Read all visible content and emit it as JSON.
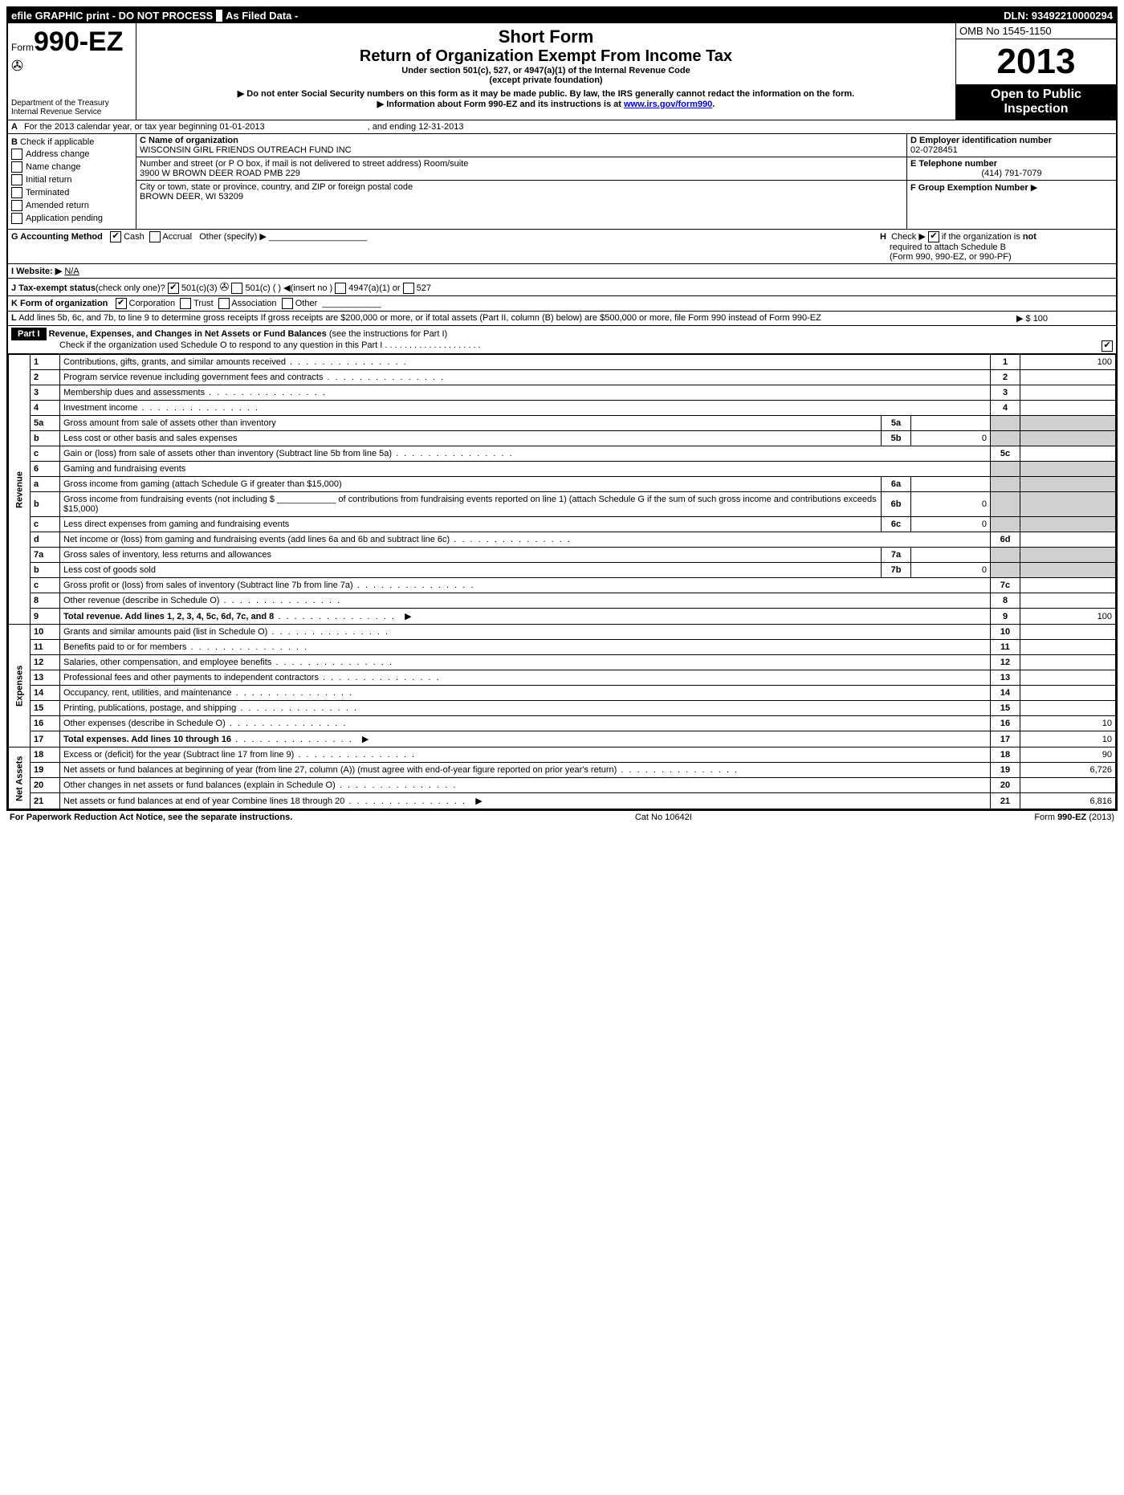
{
  "top_bar": {
    "efile": "efile GRAPHIC print - DO NOT PROCESS",
    "as_filed": "As Filed Data -",
    "dln": "DLN: 93492210000294"
  },
  "header": {
    "form_prefix": "Form",
    "form_number": "990-EZ",
    "dept1": "Department of the Treasury",
    "dept2": "Internal Revenue Service",
    "short_form": "Short Form",
    "title": "Return of Organization Exempt From Income Tax",
    "subtitle1": "Under section 501(c), 527, or 4947(a)(1) of the Internal Revenue Code",
    "subtitle2": "(except private foundation)",
    "note1": "▶ Do not enter Social Security numbers on this form as it may be made public. By law, the IRS generally cannot redact the information on the form.",
    "note2": "▶ Information about Form 990-EZ and its instructions is at ",
    "note2_link": "www.irs.gov/form990",
    "omb": "OMB No 1545-1150",
    "year": "2013",
    "open1": "Open to Public",
    "open2": "Inspection"
  },
  "row_a": {
    "label_a": "A",
    "text": "For the 2013 calendar year, or tax year beginning 01-01-2013",
    "ending": ", and ending 12-31-2013"
  },
  "col_b": {
    "label": "B",
    "intro": "Check if applicable",
    "items": [
      "Address change",
      "Name change",
      "Initial return",
      "Terminated",
      "Amended return",
      "Application pending"
    ]
  },
  "col_c": {
    "name_label": "C Name of organization",
    "name": "WISCONSIN GIRL FRIENDS OUTREACH FUND INC",
    "street_label": "Number and street (or P O box, if mail is not delivered to street address) Room/suite",
    "street": "3900 W BROWN DEER ROAD PMB 229",
    "city_label": "City or town, state or province, country, and ZIP or foreign postal code",
    "city": "BROWN DEER, WI 53209"
  },
  "col_d": {
    "ein_label": "D Employer identification number",
    "ein": "02-0728451",
    "tel_label": "E Telephone number",
    "tel": "(414) 791-7079",
    "grp_label": "F Group Exemption Number",
    "grp_arrow": "▶"
  },
  "line_g": {
    "label": "G Accounting Method",
    "cash": "Cash",
    "accrual": "Accrual",
    "other": "Other (specify) ▶"
  },
  "line_h": {
    "label": "H",
    "text1": "Check ▶",
    "text2": "if the organization is",
    "not": "not",
    "text3": "required to attach Schedule B",
    "text4": "(Form 990, 990-EZ, or 990-PF)"
  },
  "line_i": {
    "label": "I Website: ▶",
    "value": "N/A"
  },
  "line_j": {
    "label": "J Tax-exempt status",
    "paren": "(check only one)?",
    "opt1": "501(c)(3)",
    "opt2": "501(c) (   ) ◀(insert no )",
    "opt3": "4947(a)(1) or",
    "opt4": "527"
  },
  "line_k": {
    "label": "K Form of organization",
    "opts": [
      "Corporation",
      "Trust",
      "Association",
      "Other"
    ]
  },
  "line_l": {
    "label": "L",
    "text": "Add lines 5b, 6c, and 7b, to line 9 to determine gross receipts  If gross receipts are $200,000 or more, or if total assets (Part II, column (B) below) are $500,000 or more, file Form 990 instead of Form 990-EZ",
    "amount": "▶ $ 100"
  },
  "part1": {
    "header": "Part I",
    "title": "Revenue, Expenses, and Changes in Net Assets or Fund Balances",
    "title_note": "(see the instructions for Part I)",
    "check_note": "Check if the organization used Schedule O to respond to any question in this Part I . . . . . . . . . . . . . . . . . . . ."
  },
  "sections": {
    "revenue": "Revenue",
    "expenses": "Expenses",
    "net_assets": "Net Assets"
  },
  "lines": [
    {
      "section": "revenue",
      "num": "1",
      "desc": "Contributions, gifts, grants, and similar amounts received",
      "rnum": "1",
      "amt": "100"
    },
    {
      "section": "revenue",
      "num": "2",
      "desc": "Program service revenue including government fees and contracts",
      "rnum": "2",
      "amt": ""
    },
    {
      "section": "revenue",
      "num": "3",
      "desc": "Membership dues and assessments",
      "rnum": "3",
      "amt": ""
    },
    {
      "section": "revenue",
      "num": "4",
      "desc": "Investment income",
      "rnum": "4",
      "amt": ""
    },
    {
      "section": "revenue",
      "num": "5a",
      "desc": "Gross amount from sale of assets other than inventory",
      "sub_num": "5a",
      "sub_amt": ""
    },
    {
      "section": "revenue",
      "num": "b",
      "desc": "Less cost or other basis and sales expenses",
      "sub_num": "5b",
      "sub_amt": "0"
    },
    {
      "section": "revenue",
      "num": "c",
      "desc": "Gain or (loss) from sale of assets other than inventory (Subtract line 5b from line 5a)",
      "rnum": "5c",
      "amt": ""
    },
    {
      "section": "revenue",
      "num": "6",
      "desc": "Gaming and fundraising events",
      "gray_right": true
    },
    {
      "section": "revenue",
      "num": "a",
      "desc": "Gross income from gaming (attach Schedule G if greater than $15,000)",
      "sub_num": "6a",
      "sub_amt": ""
    },
    {
      "section": "revenue",
      "num": "b",
      "desc": "Gross income from fundraising events (not including $ ____________ of contributions from fundraising events reported on line 1) (attach Schedule G if the sum of such gross income and contributions exceeds $15,000)",
      "sub_num": "6b",
      "sub_amt": "0"
    },
    {
      "section": "revenue",
      "num": "c",
      "desc": "Less direct expenses from gaming and fundraising events",
      "sub_num": "6c",
      "sub_amt": "0"
    },
    {
      "section": "revenue",
      "num": "d",
      "desc": "Net income or (loss) from gaming and fundraising events (add lines 6a and 6b and subtract line 6c)",
      "rnum": "6d",
      "amt": ""
    },
    {
      "section": "revenue",
      "num": "7a",
      "desc": "Gross sales of inventory, less returns and allowances",
      "sub_num": "7a",
      "sub_amt": ""
    },
    {
      "section": "revenue",
      "num": "b",
      "desc": "Less cost of goods sold",
      "sub_num": "7b",
      "sub_amt": "0"
    },
    {
      "section": "revenue",
      "num": "c",
      "desc": "Gross profit or (loss) from sales of inventory (Subtract line 7b from line 7a)",
      "rnum": "7c",
      "amt": ""
    },
    {
      "section": "revenue",
      "num": "8",
      "desc": "Other revenue (describe in Schedule O)",
      "rnum": "8",
      "amt": ""
    },
    {
      "section": "revenue",
      "num": "9",
      "desc": "Total revenue. Add lines 1, 2, 3, 4, 5c, 6d, 7c, and 8",
      "rnum": "9",
      "amt": "100",
      "bold": true,
      "arrow": true
    },
    {
      "section": "expenses",
      "num": "10",
      "desc": "Grants and similar amounts paid (list in Schedule O)",
      "rnum": "10",
      "amt": ""
    },
    {
      "section": "expenses",
      "num": "11",
      "desc": "Benefits paid to or for members",
      "rnum": "11",
      "amt": ""
    },
    {
      "section": "expenses",
      "num": "12",
      "desc": "Salaries, other compensation, and employee benefits",
      "rnum": "12",
      "amt": ""
    },
    {
      "section": "expenses",
      "num": "13",
      "desc": "Professional fees and other payments to independent contractors",
      "rnum": "13",
      "amt": ""
    },
    {
      "section": "expenses",
      "num": "14",
      "desc": "Occupancy, rent, utilities, and maintenance",
      "rnum": "14",
      "amt": ""
    },
    {
      "section": "expenses",
      "num": "15",
      "desc": "Printing, publications, postage, and shipping",
      "rnum": "15",
      "amt": ""
    },
    {
      "section": "expenses",
      "num": "16",
      "desc": "Other expenses (describe in Schedule O)",
      "rnum": "16",
      "amt": "10"
    },
    {
      "section": "expenses",
      "num": "17",
      "desc": "Total expenses. Add lines 10 through 16",
      "rnum": "17",
      "amt": "10",
      "bold": true,
      "arrow": true
    },
    {
      "section": "net_assets",
      "num": "18",
      "desc": "Excess or (deficit) for the year (Subtract line 17 from line 9)",
      "rnum": "18",
      "amt": "90"
    },
    {
      "section": "net_assets",
      "num": "19",
      "desc": "Net assets or fund balances at beginning of year (from line 27, column (A)) (must agree with end-of-year figure reported on prior year's return)",
      "rnum": "19",
      "amt": "6,726"
    },
    {
      "section": "net_assets",
      "num": "20",
      "desc": "Other changes in net assets or fund balances (explain in Schedule O)",
      "rnum": "20",
      "amt": ""
    },
    {
      "section": "net_assets",
      "num": "21",
      "desc": "Net assets or fund balances at end of year Combine lines 18 through 20",
      "rnum": "21",
      "amt": "6,816",
      "arrow": true
    }
  ],
  "footer": {
    "left": "For Paperwork Reduction Act Notice, see the separate instructions.",
    "center": "Cat No 10642I",
    "right": "Form 990-EZ (2013)"
  }
}
